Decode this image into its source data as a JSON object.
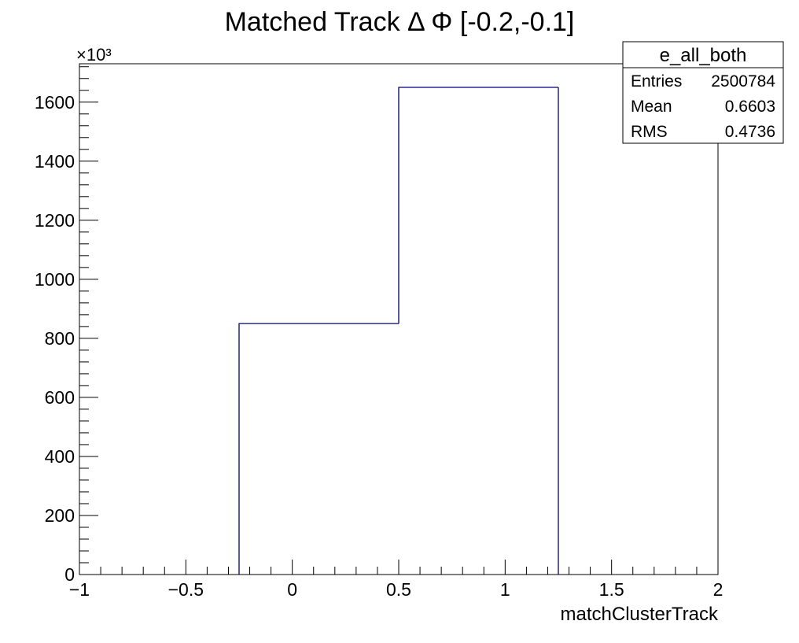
{
  "chart_data": {
    "type": "bar",
    "title": "Matched Track Δ Φ [-0.2,-0.1]",
    "xlabel": "matchClusterTrack",
    "ylabel": "",
    "y_multiplier": "×10³",
    "xlim": [
      -1,
      2
    ],
    "ylim": [
      0,
      1730
    ],
    "x_ticks": [
      {
        "value": -1,
        "label": "−1"
      },
      {
        "value": -0.5,
        "label": "−0.5"
      },
      {
        "value": 0,
        "label": "0"
      },
      {
        "value": 0.5,
        "label": "0.5"
      },
      {
        "value": 1,
        "label": "1"
      },
      {
        "value": 1.5,
        "label": "1.5"
      },
      {
        "value": 2,
        "label": "2"
      }
    ],
    "y_ticks": [
      {
        "value": 0,
        "label": "0"
      },
      {
        "value": 200,
        "label": "200"
      },
      {
        "value": 400,
        "label": "400"
      },
      {
        "value": 600,
        "label": "600"
      },
      {
        "value": 800,
        "label": "800"
      },
      {
        "value": 1000,
        "label": "1000"
      },
      {
        "value": 1200,
        "label": "1200"
      },
      {
        "value": 1400,
        "label": "1400"
      },
      {
        "value": 1600,
        "label": "1600"
      }
    ],
    "bins": [
      {
        "low": -0.25,
        "high": 0.5,
        "value": 850
      },
      {
        "low": 0.5,
        "high": 1.25,
        "value": 1650
      }
    ],
    "line_color": "#000080",
    "grid": false,
    "legend_position": "top-right",
    "stats_box": {
      "title": "e_all_both",
      "rows": [
        {
          "label": "Entries",
          "value": "2500784"
        },
        {
          "label": "Mean",
          "value": "0.6603"
        },
        {
          "label": "RMS",
          "value": "0.4736"
        }
      ]
    }
  }
}
